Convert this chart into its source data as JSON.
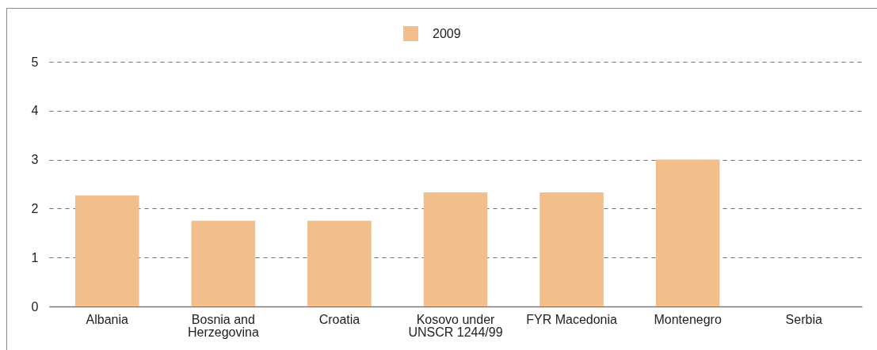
{
  "chart_data": {
    "type": "bar",
    "categories": [
      "Albania",
      "Bosnia and Herzegovina",
      "Croatia",
      "Kosovo under UNSCR 1244/99",
      "FYR Macedonia",
      "Montenegro",
      "Serbia"
    ],
    "series": [
      {
        "name": "2009",
        "color": "#f2bf8c",
        "values": [
          2.27,
          1.75,
          1.75,
          2.33,
          2.33,
          3.0,
          null
        ]
      }
    ],
    "ylim": [
      0,
      5
    ],
    "yticks": [
      0,
      1,
      2,
      3,
      4,
      5
    ],
    "grid": "y",
    "legend": "top"
  }
}
